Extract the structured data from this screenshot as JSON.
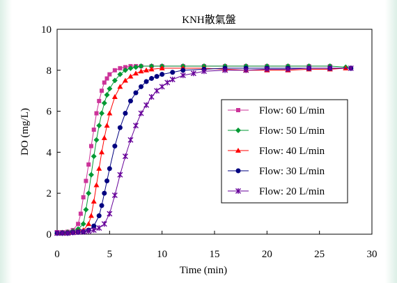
{
  "chart_data": {
    "type": "scatter",
    "title": "KNH散氣盤",
    "xlabel": "Time (min)",
    "ylabel": "DO (mg/L)",
    "xlim": [
      0,
      30
    ],
    "ylim": [
      0,
      10
    ],
    "xticks": [
      0,
      5,
      10,
      15,
      20,
      25,
      30
    ],
    "yticks": [
      0,
      2,
      4,
      6,
      8,
      10
    ],
    "grid": false,
    "legend_position": "right-center",
    "series": [
      {
        "name": "Flow: 60 L/min",
        "color": "#cc3399",
        "marker": "square",
        "x": [
          0,
          0.5,
          1,
          1.5,
          2,
          2.25,
          2.5,
          2.75,
          3,
          3.25,
          3.5,
          3.75,
          4,
          4.25,
          4.5,
          4.75,
          5,
          5.5,
          6,
          6.5,
          7,
          7.5,
          8,
          9,
          10,
          12,
          14,
          16,
          18,
          20,
          22,
          24,
          26
        ],
        "y": [
          0.1,
          0.1,
          0.12,
          0.2,
          0.5,
          1.0,
          1.8,
          2.6,
          3.4,
          4.3,
          5.1,
          5.9,
          6.5,
          7.0,
          7.4,
          7.6,
          7.8,
          8.0,
          8.1,
          8.15,
          8.2,
          8.2,
          8.2,
          8.2,
          8.2,
          8.2,
          8.2,
          8.2,
          8.2,
          8.2,
          8.2,
          8.2,
          8.2
        ]
      },
      {
        "name": "Flow: 50 L/min",
        "color": "#009933",
        "marker": "diamond",
        "x": [
          0,
          0.5,
          1,
          1.5,
          2,
          2.5,
          2.75,
          3,
          3.25,
          3.5,
          3.75,
          4,
          4.25,
          4.5,
          4.75,
          5,
          5.5,
          6,
          6.5,
          7,
          7.5,
          8,
          9,
          10,
          12,
          14,
          16,
          18,
          20,
          22,
          24,
          26,
          27.5
        ],
        "y": [
          0.05,
          0.08,
          0.1,
          0.15,
          0.25,
          0.5,
          1.2,
          2.0,
          2.9,
          3.8,
          4.6,
          5.3,
          5.9,
          6.4,
          6.8,
          7.1,
          7.5,
          7.8,
          8.0,
          8.1,
          8.15,
          8.2,
          8.2,
          8.2,
          8.2,
          8.2,
          8.2,
          8.2,
          8.2,
          8.2,
          8.2,
          8.2,
          8.15
        ]
      },
      {
        "name": "Flow: 40 L/min",
        "color": "#ff0000",
        "marker": "triangle",
        "x": [
          0,
          0.5,
          1,
          1.5,
          2,
          2.5,
          3,
          3.25,
          3.5,
          3.75,
          4,
          4.25,
          4.5,
          4.75,
          5,
          5.5,
          6,
          6.5,
          7,
          7.5,
          8,
          8.5,
          9,
          10,
          12,
          14,
          16,
          18,
          20,
          22,
          24,
          26,
          27.5
        ],
        "y": [
          0.05,
          0.05,
          0.08,
          0.1,
          0.15,
          0.2,
          0.5,
          0.9,
          1.6,
          2.4,
          3.2,
          4.0,
          4.7,
          5.3,
          5.9,
          6.7,
          7.2,
          7.5,
          7.7,
          7.85,
          7.95,
          8.0,
          8.05,
          8.1,
          8.1,
          8.1,
          8.05,
          8.0,
          8.0,
          8.0,
          8.05,
          8.05,
          8.1
        ]
      },
      {
        "name": "Flow: 30 L/min",
        "color": "#000080",
        "marker": "circle",
        "x": [
          0,
          0.5,
          1,
          1.5,
          2,
          2.5,
          3,
          3.5,
          4,
          4.25,
          4.5,
          4.75,
          5,
          5.5,
          6,
          6.5,
          7,
          7.5,
          8,
          8.5,
          9,
          9.5,
          10,
          11,
          12,
          14,
          16,
          18,
          20,
          22,
          24,
          26,
          28
        ],
        "y": [
          0.05,
          0.05,
          0.05,
          0.08,
          0.1,
          0.12,
          0.2,
          0.4,
          0.9,
          1.4,
          2.0,
          2.6,
          3.2,
          4.3,
          5.2,
          5.9,
          6.5,
          6.9,
          7.2,
          7.45,
          7.6,
          7.7,
          7.8,
          7.9,
          8.0,
          8.05,
          8.1,
          8.1,
          8.1,
          8.1,
          8.1,
          8.1,
          8.1
        ]
      },
      {
        "name": "Flow: 20 L/min",
        "color": "#660099",
        "marker": "star",
        "x": [
          0,
          0.5,
          1,
          1.5,
          2,
          2.5,
          3,
          3.5,
          4,
          4.5,
          5,
          5.5,
          6,
          6.5,
          7,
          7.5,
          8,
          8.5,
          9,
          9.5,
          10,
          10.5,
          11,
          12,
          13,
          14,
          16,
          18,
          20,
          22,
          24,
          26,
          28
        ],
        "y": [
          0.05,
          0.05,
          0.05,
          0.08,
          0.1,
          0.12,
          0.15,
          0.2,
          0.3,
          0.5,
          1.0,
          1.9,
          2.9,
          3.8,
          4.6,
          5.3,
          5.9,
          6.3,
          6.7,
          7.0,
          7.2,
          7.4,
          7.55,
          7.75,
          7.85,
          7.95,
          8.0,
          8.0,
          8.05,
          8.05,
          8.1,
          8.1,
          8.1
        ]
      }
    ]
  }
}
